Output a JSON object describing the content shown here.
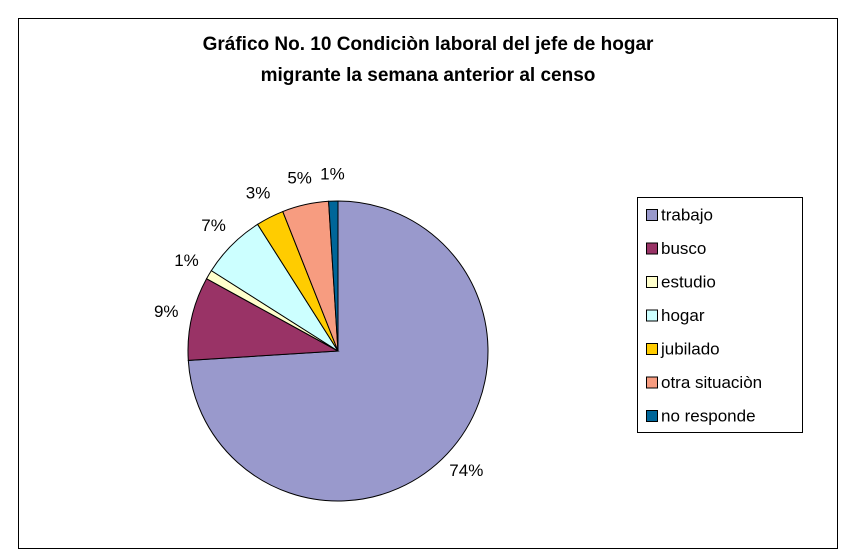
{
  "chart_data": {
    "type": "pie",
    "title": [
      "Gráfico No. 10   Condiciòn laboral del jefe de hogar",
      "migrante la semana anterior al censo"
    ],
    "categories": [
      "trabajo",
      "busco",
      "estudio",
      "hogar",
      "jubilado",
      "otra situaciòn",
      "no responde"
    ],
    "values": [
      74,
      9,
      1,
      7,
      3,
      5,
      1
    ],
    "value_labels": [
      "74%",
      "9%",
      "1%",
      "7%",
      "3%",
      "5%",
      "1%"
    ],
    "colors": [
      "#9999cc",
      "#993366",
      "#ffffcc",
      "#ccffff",
      "#ffcc00",
      "#f79c80",
      "#006699"
    ],
    "legend": "right"
  }
}
